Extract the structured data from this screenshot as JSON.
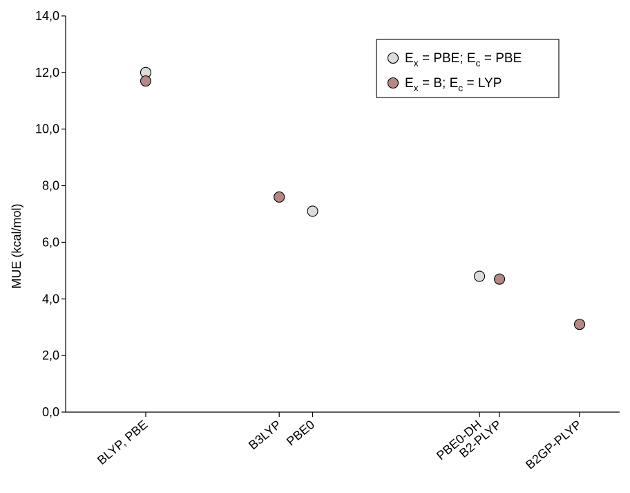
{
  "chart_data": {
    "type": "scatter",
    "ylabel": "MUE (kcal/mol)",
    "xlabel": "",
    "ylim": [
      0,
      14
    ],
    "y_ticks": [
      "0,0",
      "2,0",
      "4,0",
      "6,0",
      "8,0",
      "10,0",
      "12,0",
      "14,0"
    ],
    "grid": false,
    "legend_position": "top-right",
    "categories": [
      "BLYP, PBE",
      "B3LYP",
      "PBE0",
      "PBE0-DH",
      "B2-PLYP",
      "B2GP-PLYP"
    ],
    "category_x": [
      1,
      5,
      6,
      11,
      11.6,
      14
    ],
    "xlim": [
      -1.4,
      15.2
    ],
    "series": [
      {
        "key": "pbe",
        "legend": {
          "base1": "E",
          "sub1": "x",
          "mid": " = PBE; E",
          "sub2": "c",
          "end": " = PBE"
        },
        "color": "#dcdcdc",
        "points": [
          {
            "category": "BLYP, PBE",
            "y": 12.0
          },
          {
            "category": "PBE0",
            "y": 7.1
          },
          {
            "category": "PBE0-DH",
            "y": 4.8
          }
        ]
      },
      {
        "key": "lyp",
        "legend": {
          "base1": "E",
          "sub1": "x",
          "mid": " = B; E",
          "sub2": "c",
          "end": " = LYP"
        },
        "color": "#b58883",
        "points": [
          {
            "category": "BLYP, PBE",
            "y": 11.7
          },
          {
            "category": "B3LYP",
            "y": 7.6
          },
          {
            "category": "B2-PLYP",
            "y": 4.7
          },
          {
            "category": "B2GP-PLYP",
            "y": 3.1
          }
        ]
      }
    ]
  }
}
